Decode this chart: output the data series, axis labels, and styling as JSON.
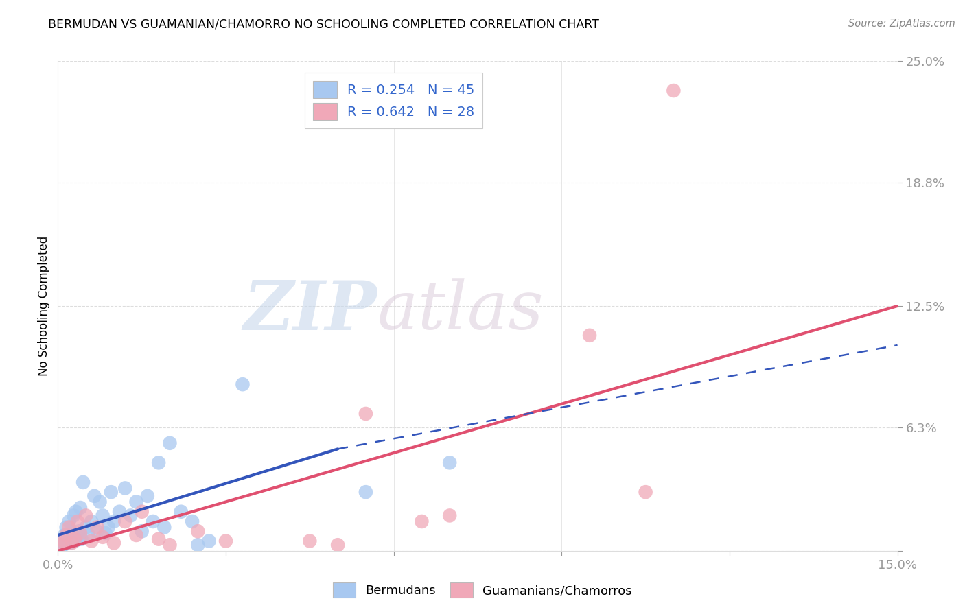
{
  "title": "BERMUDAN VS GUAMANIAN/CHAMORRO NO SCHOOLING COMPLETED CORRELATION CHART",
  "source": "Source: ZipAtlas.com",
  "ylabel": "No Schooling Completed",
  "xlim": [
    0.0,
    15.0
  ],
  "ylim": [
    0.0,
    25.0
  ],
  "xticks": [
    0.0,
    3.0,
    6.0,
    9.0,
    12.0,
    15.0
  ],
  "yticks": [
    0.0,
    6.3,
    12.5,
    18.8,
    25.0
  ],
  "xtick_labels": [
    "0.0%",
    "",
    "",
    "",
    "",
    "15.0%"
  ],
  "ytick_labels": [
    "",
    "6.3%",
    "12.5%",
    "18.8%",
    "25.0%"
  ],
  "blue_R": 0.254,
  "blue_N": 45,
  "pink_R": 0.642,
  "pink_N": 28,
  "blue_color": "#a8c8f0",
  "pink_color": "#f0a8b8",
  "blue_line_color": "#3355bb",
  "pink_line_color": "#e05070",
  "blue_scatter": [
    [
      0.05,
      0.2
    ],
    [
      0.08,
      0.5
    ],
    [
      0.1,
      0.3
    ],
    [
      0.12,
      0.8
    ],
    [
      0.15,
      1.2
    ],
    [
      0.18,
      0.6
    ],
    [
      0.2,
      1.5
    ],
    [
      0.22,
      0.4
    ],
    [
      0.25,
      0.9
    ],
    [
      0.28,
      1.8
    ],
    [
      0.3,
      0.5
    ],
    [
      0.32,
      2.0
    ],
    [
      0.35,
      0.7
    ],
    [
      0.38,
      1.0
    ],
    [
      0.4,
      2.2
    ],
    [
      0.42,
      0.6
    ],
    [
      0.45,
      3.5
    ],
    [
      0.5,
      1.2
    ],
    [
      0.55,
      0.8
    ],
    [
      0.6,
      1.5
    ],
    [
      0.65,
      2.8
    ],
    [
      0.7,
      1.0
    ],
    [
      0.75,
      2.5
    ],
    [
      0.8,
      1.8
    ],
    [
      0.85,
      0.9
    ],
    [
      0.9,
      1.2
    ],
    [
      0.95,
      3.0
    ],
    [
      1.0,
      1.5
    ],
    [
      1.1,
      2.0
    ],
    [
      1.2,
      3.2
    ],
    [
      1.3,
      1.8
    ],
    [
      1.4,
      2.5
    ],
    [
      1.5,
      1.0
    ],
    [
      1.6,
      2.8
    ],
    [
      1.7,
      1.5
    ],
    [
      1.8,
      4.5
    ],
    [
      1.9,
      1.2
    ],
    [
      2.0,
      5.5
    ],
    [
      2.2,
      2.0
    ],
    [
      2.4,
      1.5
    ],
    [
      2.5,
      0.3
    ],
    [
      2.7,
      0.5
    ],
    [
      3.3,
      8.5
    ],
    [
      5.5,
      3.0
    ],
    [
      7.0,
      4.5
    ]
  ],
  "pink_scatter": [
    [
      0.05,
      0.3
    ],
    [
      0.1,
      0.5
    ],
    [
      0.15,
      0.8
    ],
    [
      0.2,
      1.2
    ],
    [
      0.25,
      0.4
    ],
    [
      0.3,
      0.6
    ],
    [
      0.35,
      1.5
    ],
    [
      0.4,
      0.9
    ],
    [
      0.5,
      1.8
    ],
    [
      0.6,
      0.5
    ],
    [
      0.7,
      1.2
    ],
    [
      0.8,
      0.7
    ],
    [
      1.0,
      0.4
    ],
    [
      1.2,
      1.5
    ],
    [
      1.4,
      0.8
    ],
    [
      1.5,
      2.0
    ],
    [
      1.8,
      0.6
    ],
    [
      2.0,
      0.3
    ],
    [
      2.5,
      1.0
    ],
    [
      3.0,
      0.5
    ],
    [
      4.5,
      0.5
    ],
    [
      5.0,
      0.3
    ],
    [
      5.5,
      7.0
    ],
    [
      6.5,
      1.5
    ],
    [
      7.0,
      1.8
    ],
    [
      9.5,
      11.0
    ],
    [
      10.5,
      3.0
    ],
    [
      11.0,
      23.5
    ]
  ],
  "blue_line_x0": 0.0,
  "blue_line_y0": 0.8,
  "blue_line_x1": 5.0,
  "blue_line_y1": 5.2,
  "blue_dash_x1": 15.0,
  "blue_dash_y1": 10.5,
  "pink_line_x0": 0.0,
  "pink_line_y0": 0.0,
  "pink_line_x1": 15.0,
  "pink_line_y1": 12.5,
  "watermark_zip": "ZIP",
  "watermark_atlas": "atlas",
  "background_color": "#ffffff",
  "grid_color": "#cccccc"
}
